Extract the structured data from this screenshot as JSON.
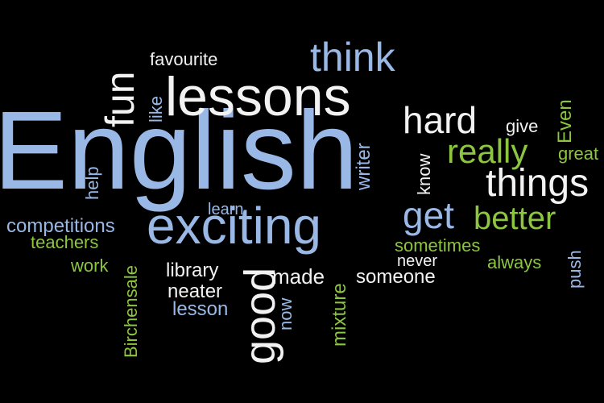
{
  "words": {
    "english": "English",
    "lessons": "lessons",
    "exciting": "exciting",
    "think": "think",
    "favourite": "favourite",
    "fun": "fun",
    "like": "like",
    "hard": "hard",
    "give": "give",
    "even": "Even",
    "great": "great",
    "really": "really",
    "know": "know",
    "things": "things",
    "get": "get",
    "better": "better",
    "writer": "writer",
    "help": "help",
    "learn": "learn",
    "competitions": "competitions",
    "teachers": "teachers",
    "work": "work",
    "birchensale": "Birchensale",
    "library": "library",
    "neater": "neater",
    "lesson": "lesson",
    "good": "good",
    "made": "made",
    "now": "now",
    "mixture": "mixture",
    "someone": "someone",
    "never": "never",
    "sometimes": "sometimes",
    "always": "always",
    "push": "push"
  },
  "colors": {
    "background": "#000000",
    "white": "#f2f2f2",
    "blue": "#9ab8e6",
    "green": "#8cc63f"
  }
}
